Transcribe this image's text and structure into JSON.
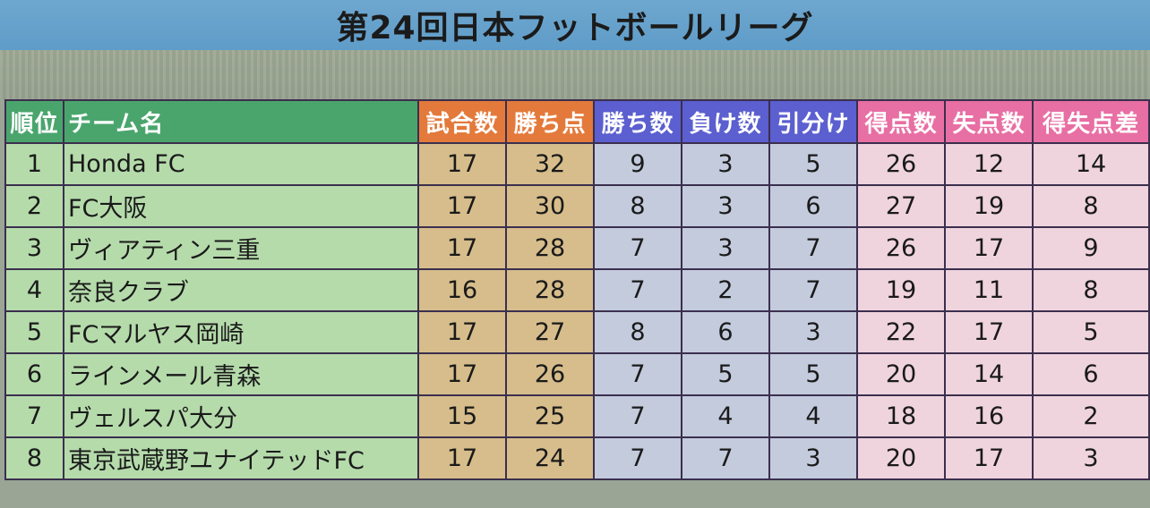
{
  "title": "第24回日本フットボールリーグ",
  "headers": {
    "rank": "順位",
    "team": "チーム名",
    "played": "試合数",
    "points": "勝ち点",
    "wins": "勝ち数",
    "losses": "負け数",
    "draws": "引分け",
    "goals_for": "得点数",
    "goals_against": "失点数",
    "goal_diff": "得失点差"
  },
  "colors": {
    "title_bar": "#6ea7cf",
    "header_green": "#4aa56d",
    "header_orange": "#e37a3b",
    "header_blue": "#5b5fcf",
    "header_pink": "#e86fa3",
    "cell_green": "#b5dbab",
    "cell_tan": "#d6bd8b",
    "cell_blue": "#c3cbdd",
    "cell_pink": "#efd4dd"
  },
  "rows": [
    {
      "rank": "1",
      "team": "Honda FC",
      "played": "17",
      "points": "32",
      "wins": "9",
      "losses": "3",
      "draws": "5",
      "goals_for": "26",
      "goals_against": "12",
      "goal_diff": "14"
    },
    {
      "rank": "2",
      "team": "FC大阪",
      "played": "17",
      "points": "30",
      "wins": "8",
      "losses": "3",
      "draws": "6",
      "goals_for": "27",
      "goals_against": "19",
      "goal_diff": "8"
    },
    {
      "rank": "3",
      "team": "ヴィアティン三重",
      "played": "17",
      "points": "28",
      "wins": "7",
      "losses": "3",
      "draws": "7",
      "goals_for": "26",
      "goals_against": "17",
      "goal_diff": "9"
    },
    {
      "rank": "4",
      "team": "奈良クラブ",
      "played": "16",
      "points": "28",
      "wins": "7",
      "losses": "2",
      "draws": "7",
      "goals_for": "19",
      "goals_against": "11",
      "goal_diff": "8"
    },
    {
      "rank": "5",
      "team": "FCマルヤス岡崎",
      "played": "17",
      "points": "27",
      "wins": "8",
      "losses": "6",
      "draws": "3",
      "goals_for": "22",
      "goals_against": "17",
      "goal_diff": "5"
    },
    {
      "rank": "6",
      "team": "ラインメール青森",
      "played": "17",
      "points": "26",
      "wins": "7",
      "losses": "5",
      "draws": "5",
      "goals_for": "20",
      "goals_against": "14",
      "goal_diff": "6"
    },
    {
      "rank": "7",
      "team": "ヴェルスパ大分",
      "played": "15",
      "points": "25",
      "wins": "7",
      "losses": "4",
      "draws": "4",
      "goals_for": "18",
      "goals_against": "16",
      "goal_diff": "2"
    },
    {
      "rank": "8",
      "team": "東京武蔵野ユナイテッドFC",
      "played": "17",
      "points": "24",
      "wins": "7",
      "losses": "7",
      "draws": "3",
      "goals_for": "20",
      "goals_against": "17",
      "goal_diff": "3"
    }
  ]
}
